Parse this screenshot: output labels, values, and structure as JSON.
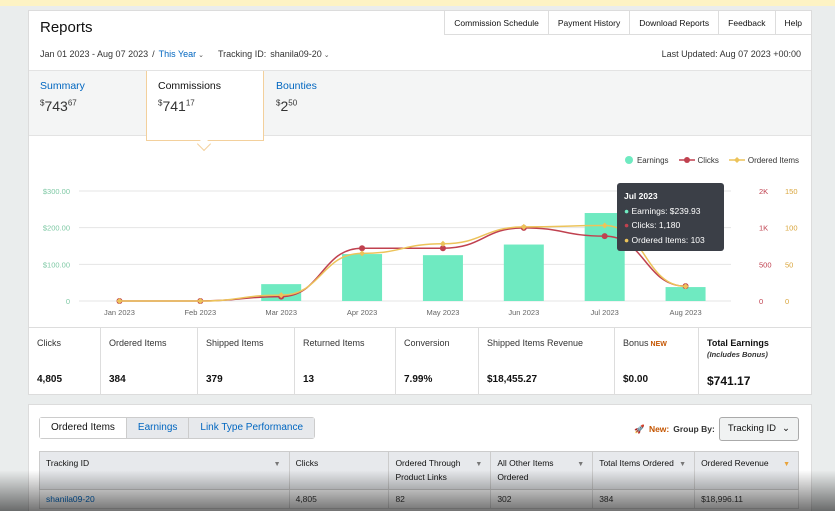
{
  "header": {
    "title": "Reports",
    "nav": [
      "Commission Schedule",
      "Payment History",
      "Download Reports",
      "Feedback",
      "Help"
    ],
    "date_range": "Jan 01 2023 - Aug 07 2023",
    "separator": "/",
    "period": "This Year",
    "tracking_label": "Tracking ID:",
    "tracking_id": "shanila09-20",
    "last_updated": "Last Updated: Aug 07 2023 +00:00"
  },
  "summary_tabs": [
    {
      "label": "Summary",
      "dollar": "$",
      "amount": "743",
      "cents": "67"
    },
    {
      "label": "Commissions",
      "dollar": "$",
      "amount": "741",
      "cents": "17"
    },
    {
      "label": "Bounties",
      "dollar": "$",
      "amount": "2",
      "cents": "50"
    }
  ],
  "colors": {
    "earnings": "#6feac1",
    "clicks": "#c0414f",
    "ordered_items": "#ecc35a",
    "link": "#0066c0",
    "accent": "#c45500"
  },
  "chart_data": {
    "type": "bar",
    "categories": [
      "Jan 2023",
      "Feb 2023",
      "Mar 2023",
      "Apr 2023",
      "May 2023",
      "Jun 2023",
      "Jul 2023",
      "Aug 2023"
    ],
    "series": [
      {
        "name": "Earnings",
        "axis": "left",
        "type": "bar",
        "values": [
          0,
          0,
          46,
          128,
          125,
          154,
          239.93,
          38
        ]
      },
      {
        "name": "Clicks",
        "axis": "right1",
        "type": "line",
        "values": [
          0,
          0,
          80,
          960,
          960,
          1330,
          1180,
          270
        ]
      },
      {
        "name": "Ordered Items",
        "axis": "right2",
        "type": "line",
        "values": [
          0,
          0,
          8,
          65,
          78,
          101,
          103,
          20
        ]
      }
    ],
    "y_left_ticks": [
      "$300.00",
      "$200.00",
      "$100.00",
      "0"
    ],
    "y_left_range": [
      0,
      300
    ],
    "y_right1_ticks": [
      "2K",
      "1K",
      "500",
      "0"
    ],
    "y_right1_range": [
      0,
      2000
    ],
    "y_right2_ticks": [
      "150",
      "100",
      "50",
      "0"
    ],
    "y_right2_range": [
      0,
      150
    ],
    "legend_position": "top-right",
    "grid": true
  },
  "tooltip": {
    "title": "Jul 2023",
    "lines": [
      "Earnings: $239.93",
      "Clicks: 1,180",
      "Ordered Items: 103"
    ]
  },
  "stats": [
    {
      "label": "Clicks",
      "value": "4,805"
    },
    {
      "label": "Ordered Items",
      "value": "384"
    },
    {
      "label": "Shipped Items",
      "value": "379"
    },
    {
      "label": "Returned Items",
      "value": "13"
    },
    {
      "label": "Conversion",
      "value": "7.99%"
    },
    {
      "label": "Shipped Items Revenue",
      "value": "$18,455.27"
    },
    {
      "label": "Bonus",
      "badge": "NEW",
      "value": "$0.00"
    },
    {
      "label": "Total Earnings",
      "sub": "(Includes Bonus)",
      "value": "$741.17"
    }
  ],
  "table_tabs": [
    "Ordered Items",
    "Earnings",
    "Link Type Performance"
  ],
  "group_by": {
    "new_label": "New:",
    "label": "Group By:",
    "selected": "Tracking ID"
  },
  "table": {
    "headers": [
      "Tracking ID",
      "Clicks",
      "Ordered Through Product Links",
      "All Other Items Ordered",
      "Total Items Ordered",
      "Ordered Revenue"
    ],
    "rows": [
      [
        "shanila09-20",
        "4,805",
        "82",
        "302",
        "384",
        "$18,996.11"
      ]
    ]
  }
}
